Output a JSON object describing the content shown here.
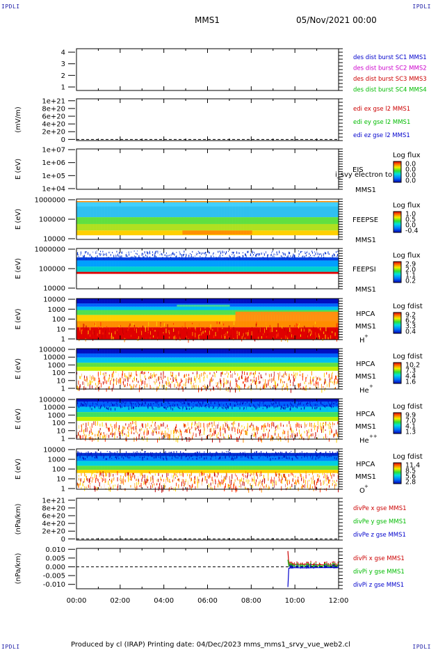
{
  "corners": {
    "tl": "IPDLI",
    "tr": "IPDLI",
    "bl": "IPDLI",
    "br": "IPDLI"
  },
  "header": {
    "spacecraft": "MMS1",
    "datetime": "05/Nov/2021 00:00"
  },
  "footer": {
    "text": "Produced by cl (IRAP)   Printing date: 04/Dec/2023   mms_mms1_srvy_vue_web2.cl"
  },
  "colors": {
    "mms1": "#0000cc",
    "mms2": "#cc00cc",
    "mms3": "#cc0000",
    "mms4": "#00bb00"
  },
  "chart_data": [
    {
      "type": "line",
      "panel": "des dist burst",
      "yticks": [
        "1",
        "2",
        "3",
        "4"
      ],
      "ylim": [
        0.7,
        4.3
      ],
      "legend": [
        {
          "text": "des dist burst SC1 MMS1",
          "color": "#0000cc"
        },
        {
          "text": "des dist burst SC2 MMS2",
          "color": "#cc00cc"
        },
        {
          "text": "des dist burst SC3 MMS3",
          "color": "#cc0000"
        },
        {
          "text": "des dist burst SC4 MMS4",
          "color": "#00bb00"
        }
      ],
      "series": []
    },
    {
      "type": "line",
      "panel": "edi",
      "ylabel": "(mV/m)",
      "yticks": [
        "0",
        "2e+20",
        "4e+20",
        "6e+20",
        "8e+20",
        "1e+21"
      ],
      "ylim": [
        -3e+19,
        1.05e+21
      ],
      "legend": [
        {
          "text": "edi ex gse l2 MMS1",
          "color": "#cc0000"
        },
        {
          "text": "edi ey gse l2 MMS1",
          "color": "#00bb00"
        },
        {
          "text": "edi ez gse l2 MMS1",
          "color": "#0000cc"
        }
      ],
      "series": []
    },
    {
      "type": "heatmap",
      "panel": "EIS",
      "ylabel": "E (eV)",
      "yticks": [
        "1e+04",
        "1e+05",
        "1e+06",
        "1e+07"
      ],
      "scale": "log",
      "labels": [
        "EIS",
        "MMS1"
      ],
      "overlay_text": "i_svy electron to",
      "colorbar_title": "Log flux",
      "colorbar_ticks": [
        "0.0",
        "0.0",
        "0.0",
        "0.0"
      ],
      "has_data": false
    },
    {
      "type": "heatmap",
      "panel": "FEEPSE",
      "ylabel": "E (eV)",
      "yticks": [
        "10000",
        "100000",
        "1000000"
      ],
      "scale": "log",
      "labels": [
        "FEEPSE",
        "MMS1"
      ],
      "colorbar_title": "Log flux",
      "colorbar_ticks": [
        "1.0",
        "0.5",
        "0.0",
        "-0.4"
      ],
      "has_data": true
    },
    {
      "type": "heatmap",
      "panel": "FEEPSI",
      "ylabel": "E (eV)",
      "yticks": [
        "10000",
        "100000",
        "1000000"
      ],
      "scale": "log",
      "labels": [
        "FEEPSI",
        "MMS1"
      ],
      "colorbar_title": "Log flux",
      "colorbar_ticks": [
        "2.9",
        "2.0",
        "1.1",
        "0.2"
      ],
      "has_data": true
    },
    {
      "type": "heatmap",
      "panel": "HPCA H+",
      "ylabel": "E (eV)",
      "yticks": [
        "1",
        "10",
        "100",
        "1000",
        "10000"
      ],
      "scale": "log",
      "labels": [
        "HPCA",
        "MMS1",
        "H",
        "+"
      ],
      "colorbar_title": "Log fdist",
      "colorbar_ticks": [
        "9.2",
        "6.2",
        "3.3",
        "0.4"
      ],
      "has_data": true
    },
    {
      "type": "heatmap",
      "panel": "HPCA He+",
      "ylabel": "E (eV)",
      "yticks": [
        "1",
        "10",
        "100",
        "1000",
        "10000",
        "100000"
      ],
      "scale": "log",
      "labels": [
        "HPCA",
        "MMS1",
        "He",
        "+"
      ],
      "colorbar_title": "Log fdist",
      "colorbar_ticks": [
        "10.2",
        "7.3",
        "4.4",
        "1.6"
      ],
      "has_data": true
    },
    {
      "type": "heatmap",
      "panel": "HPCA He++",
      "ylabel": "E (eV)",
      "yticks": [
        "1",
        "10",
        "100",
        "1000",
        "10000",
        "100000"
      ],
      "scale": "log",
      "labels": [
        "HPCA",
        "MMS1",
        "He",
        "++"
      ],
      "colorbar_title": "Log fdist",
      "colorbar_ticks": [
        "9.9",
        "7.0",
        "4.1",
        "1.3"
      ],
      "has_data": true
    },
    {
      "type": "heatmap",
      "panel": "HPCA O+",
      "ylabel": "E (eV)",
      "yticks": [
        "1",
        "10",
        "100",
        "1000",
        "10000"
      ],
      "scale": "log",
      "labels": [
        "HPCA",
        "MMS1",
        "O",
        "+"
      ],
      "colorbar_title": "Log fdist",
      "colorbar_ticks": [
        "11.4",
        "8.5",
        "5.6",
        "2.8"
      ],
      "has_data": true
    },
    {
      "type": "line",
      "panel": "divPe",
      "ylabel": "(nPa/km)",
      "yticks": [
        "0",
        "2e+20",
        "4e+20",
        "6e+20",
        "8e+20",
        "1e+21"
      ],
      "ylim": [
        -3e+19,
        1.05e+21
      ],
      "legend": [
        {
          "text": "divPe x gse MMS1",
          "color": "#cc0000"
        },
        {
          "text": "divPe y gse MMS1",
          "color": "#00bb00"
        },
        {
          "text": "divPe z gse MMS1",
          "color": "#0000cc"
        }
      ],
      "series": []
    },
    {
      "type": "line",
      "panel": "divPi",
      "ylabel": "(nPa/km)",
      "yticks": [
        "-0.010",
        "-0.005",
        "0.000",
        "0.005",
        "0.010"
      ],
      "ylim": [
        -0.0125,
        0.0105
      ],
      "legend": [
        {
          "text": "divPi x gse MMS1",
          "color": "#cc0000"
        },
        {
          "text": "divPi y gse MMS1",
          "color": "#00bb00"
        },
        {
          "text": "divPi z gse MMS1",
          "color": "#0000cc"
        }
      ],
      "series": [
        {
          "name": "divPi x gse MMS1",
          "color": "#cc0000",
          "x": [
            9.68,
            9.72,
            9.8,
            10.0,
            10.5,
            11.0,
            11.5,
            12.0
          ],
          "values": [
            0.009,
            0.0015,
            0.0012,
            0.0014,
            0.0013,
            0.0012,
            0.0011,
            0.001
          ]
        },
        {
          "name": "divPi y gse MMS1",
          "color": "#00bb00",
          "x": [
            9.68,
            9.72,
            9.8,
            10.0,
            10.5,
            11.0,
            11.5,
            12.0
          ],
          "values": [
            0.004,
            0.0005,
            0.0006,
            0.0005,
            0.0004,
            0.0005,
            0.0004,
            0.0004
          ]
        },
        {
          "name": "divPi z gse MMS1",
          "color": "#0000cc",
          "x": [
            9.68,
            9.72,
            9.8,
            10.0,
            10.5,
            11.0,
            11.5,
            12.0
          ],
          "values": [
            -0.0115,
            -0.0008,
            -0.0006,
            -0.0005,
            -0.0006,
            -0.0005,
            -0.0004,
            -0.0005
          ]
        }
      ]
    }
  ],
  "xaxis": {
    "ticks": [
      "00:00",
      "02:00",
      "04:00",
      "06:00",
      "08:00",
      "10:00",
      "12:00"
    ],
    "range_hours": [
      0,
      12
    ]
  }
}
